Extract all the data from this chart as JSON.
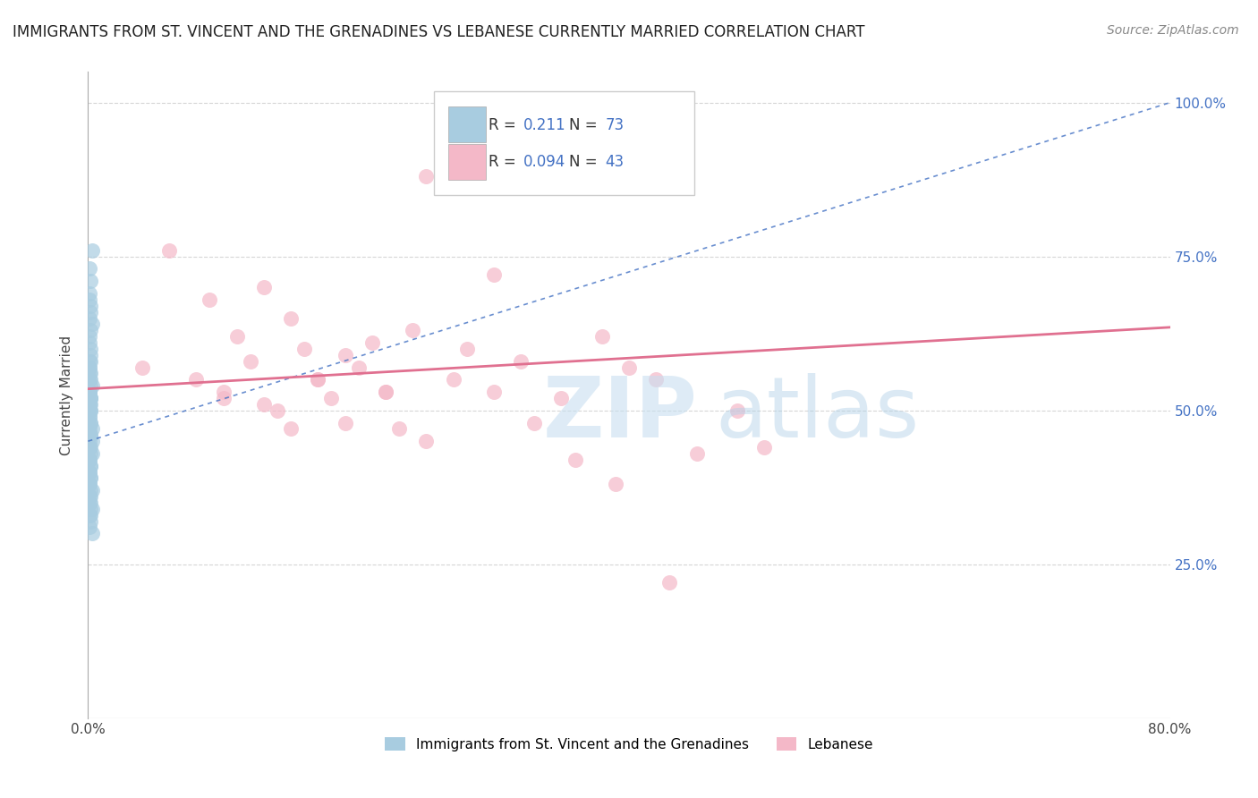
{
  "title": "IMMIGRANTS FROM ST. VINCENT AND THE GRENADINES VS LEBANESE CURRENTLY MARRIED CORRELATION CHART",
  "source": "Source: ZipAtlas.com",
  "ylabel": "Currently Married",
  "legend_box": {
    "blue_R": "0.211",
    "blue_N": "73",
    "pink_R": "0.094",
    "pink_N": "43"
  },
  "blue_scatter_x": [
    0.001,
    0.002,
    0.001,
    0.003,
    0.002,
    0.001,
    0.002,
    0.001,
    0.002,
    0.003,
    0.001,
    0.002,
    0.001,
    0.002,
    0.001,
    0.002,
    0.001,
    0.002,
    0.001,
    0.003,
    0.002,
    0.001,
    0.002,
    0.001,
    0.002,
    0.003,
    0.001,
    0.002,
    0.001,
    0.002,
    0.001,
    0.002,
    0.001,
    0.002,
    0.003,
    0.001,
    0.002,
    0.001,
    0.002,
    0.001,
    0.002,
    0.001,
    0.002,
    0.001,
    0.002,
    0.003,
    0.001,
    0.002,
    0.001,
    0.002,
    0.001,
    0.002,
    0.001,
    0.002,
    0.003,
    0.002,
    0.001,
    0.002,
    0.001,
    0.002,
    0.001,
    0.002,
    0.001,
    0.002,
    0.001,
    0.003,
    0.002,
    0.001,
    0.002,
    0.001,
    0.002,
    0.001,
    0.003
  ],
  "blue_scatter_y": [
    0.73,
    0.71,
    0.69,
    0.76,
    0.67,
    0.65,
    0.63,
    0.68,
    0.66,
    0.64,
    0.62,
    0.6,
    0.61,
    0.59,
    0.57,
    0.58,
    0.56,
    0.55,
    0.53,
    0.54,
    0.52,
    0.5,
    0.51,
    0.49,
    0.48,
    0.47,
    0.53,
    0.52,
    0.51,
    0.5,
    0.49,
    0.48,
    0.47,
    0.46,
    0.45,
    0.55,
    0.54,
    0.53,
    0.52,
    0.51,
    0.5,
    0.57,
    0.56,
    0.58,
    0.44,
    0.43,
    0.42,
    0.41,
    0.4,
    0.39,
    0.38,
    0.37,
    0.36,
    0.35,
    0.34,
    0.33,
    0.45,
    0.46,
    0.44,
    0.43,
    0.42,
    0.41,
    0.4,
    0.39,
    0.38,
    0.37,
    0.36,
    0.35,
    0.34,
    0.33,
    0.32,
    0.31,
    0.3
  ],
  "pink_scatter_x": [
    0.04,
    0.06,
    0.08,
    0.09,
    0.1,
    0.11,
    0.12,
    0.13,
    0.14,
    0.15,
    0.16,
    0.17,
    0.18,
    0.19,
    0.2,
    0.21,
    0.22,
    0.23,
    0.24,
    0.25,
    0.27,
    0.3,
    0.32,
    0.35,
    0.38,
    0.4,
    0.42,
    0.45,
    0.48,
    0.5,
    0.1,
    0.13,
    0.15,
    0.17,
    0.19,
    0.22,
    0.25,
    0.28,
    0.3,
    0.33,
    0.36,
    0.39,
    0.43
  ],
  "pink_scatter_y": [
    0.57,
    0.76,
    0.55,
    0.68,
    0.52,
    0.62,
    0.58,
    0.7,
    0.5,
    0.65,
    0.6,
    0.55,
    0.52,
    0.48,
    0.57,
    0.61,
    0.53,
    0.47,
    0.63,
    0.88,
    0.55,
    0.72,
    0.58,
    0.52,
    0.62,
    0.57,
    0.55,
    0.43,
    0.5,
    0.44,
    0.53,
    0.51,
    0.47,
    0.55,
    0.59,
    0.53,
    0.45,
    0.6,
    0.53,
    0.48,
    0.42,
    0.38,
    0.22
  ],
  "blue_line_x": [
    0.0,
    0.8
  ],
  "blue_line_y": [
    0.45,
    1.0
  ],
  "pink_line_x": [
    0.0,
    0.8
  ],
  "pink_line_y": [
    0.535,
    0.635
  ],
  "watermark_zip": "ZIP",
  "watermark_atlas": "atlas",
  "blue_color": "#a8cce0",
  "pink_color": "#f4b8c8",
  "blue_line_color": "#4472c4",
  "pink_line_color": "#e07090",
  "background_color": "#ffffff",
  "grid_color": "#cccccc",
  "xlim": [
    0.0,
    0.8
  ],
  "ylim": [
    0.0,
    1.05
  ],
  "ytick_vals": [
    0.25,
    0.5,
    0.75,
    1.0
  ],
  "ytick_labels": [
    "25.0%",
    "50.0%",
    "75.0%",
    "100.0%"
  ],
  "xtick_vals": [
    0.0,
    0.8
  ],
  "xtick_labels": [
    "0.0%",
    "80.0%"
  ],
  "right_tick_color": "#4472c4",
  "title_fontsize": 12,
  "source_fontsize": 10,
  "legend_label_blue": "Immigrants from St. Vincent and the Grenadines",
  "legend_label_pink": "Lebanese"
}
